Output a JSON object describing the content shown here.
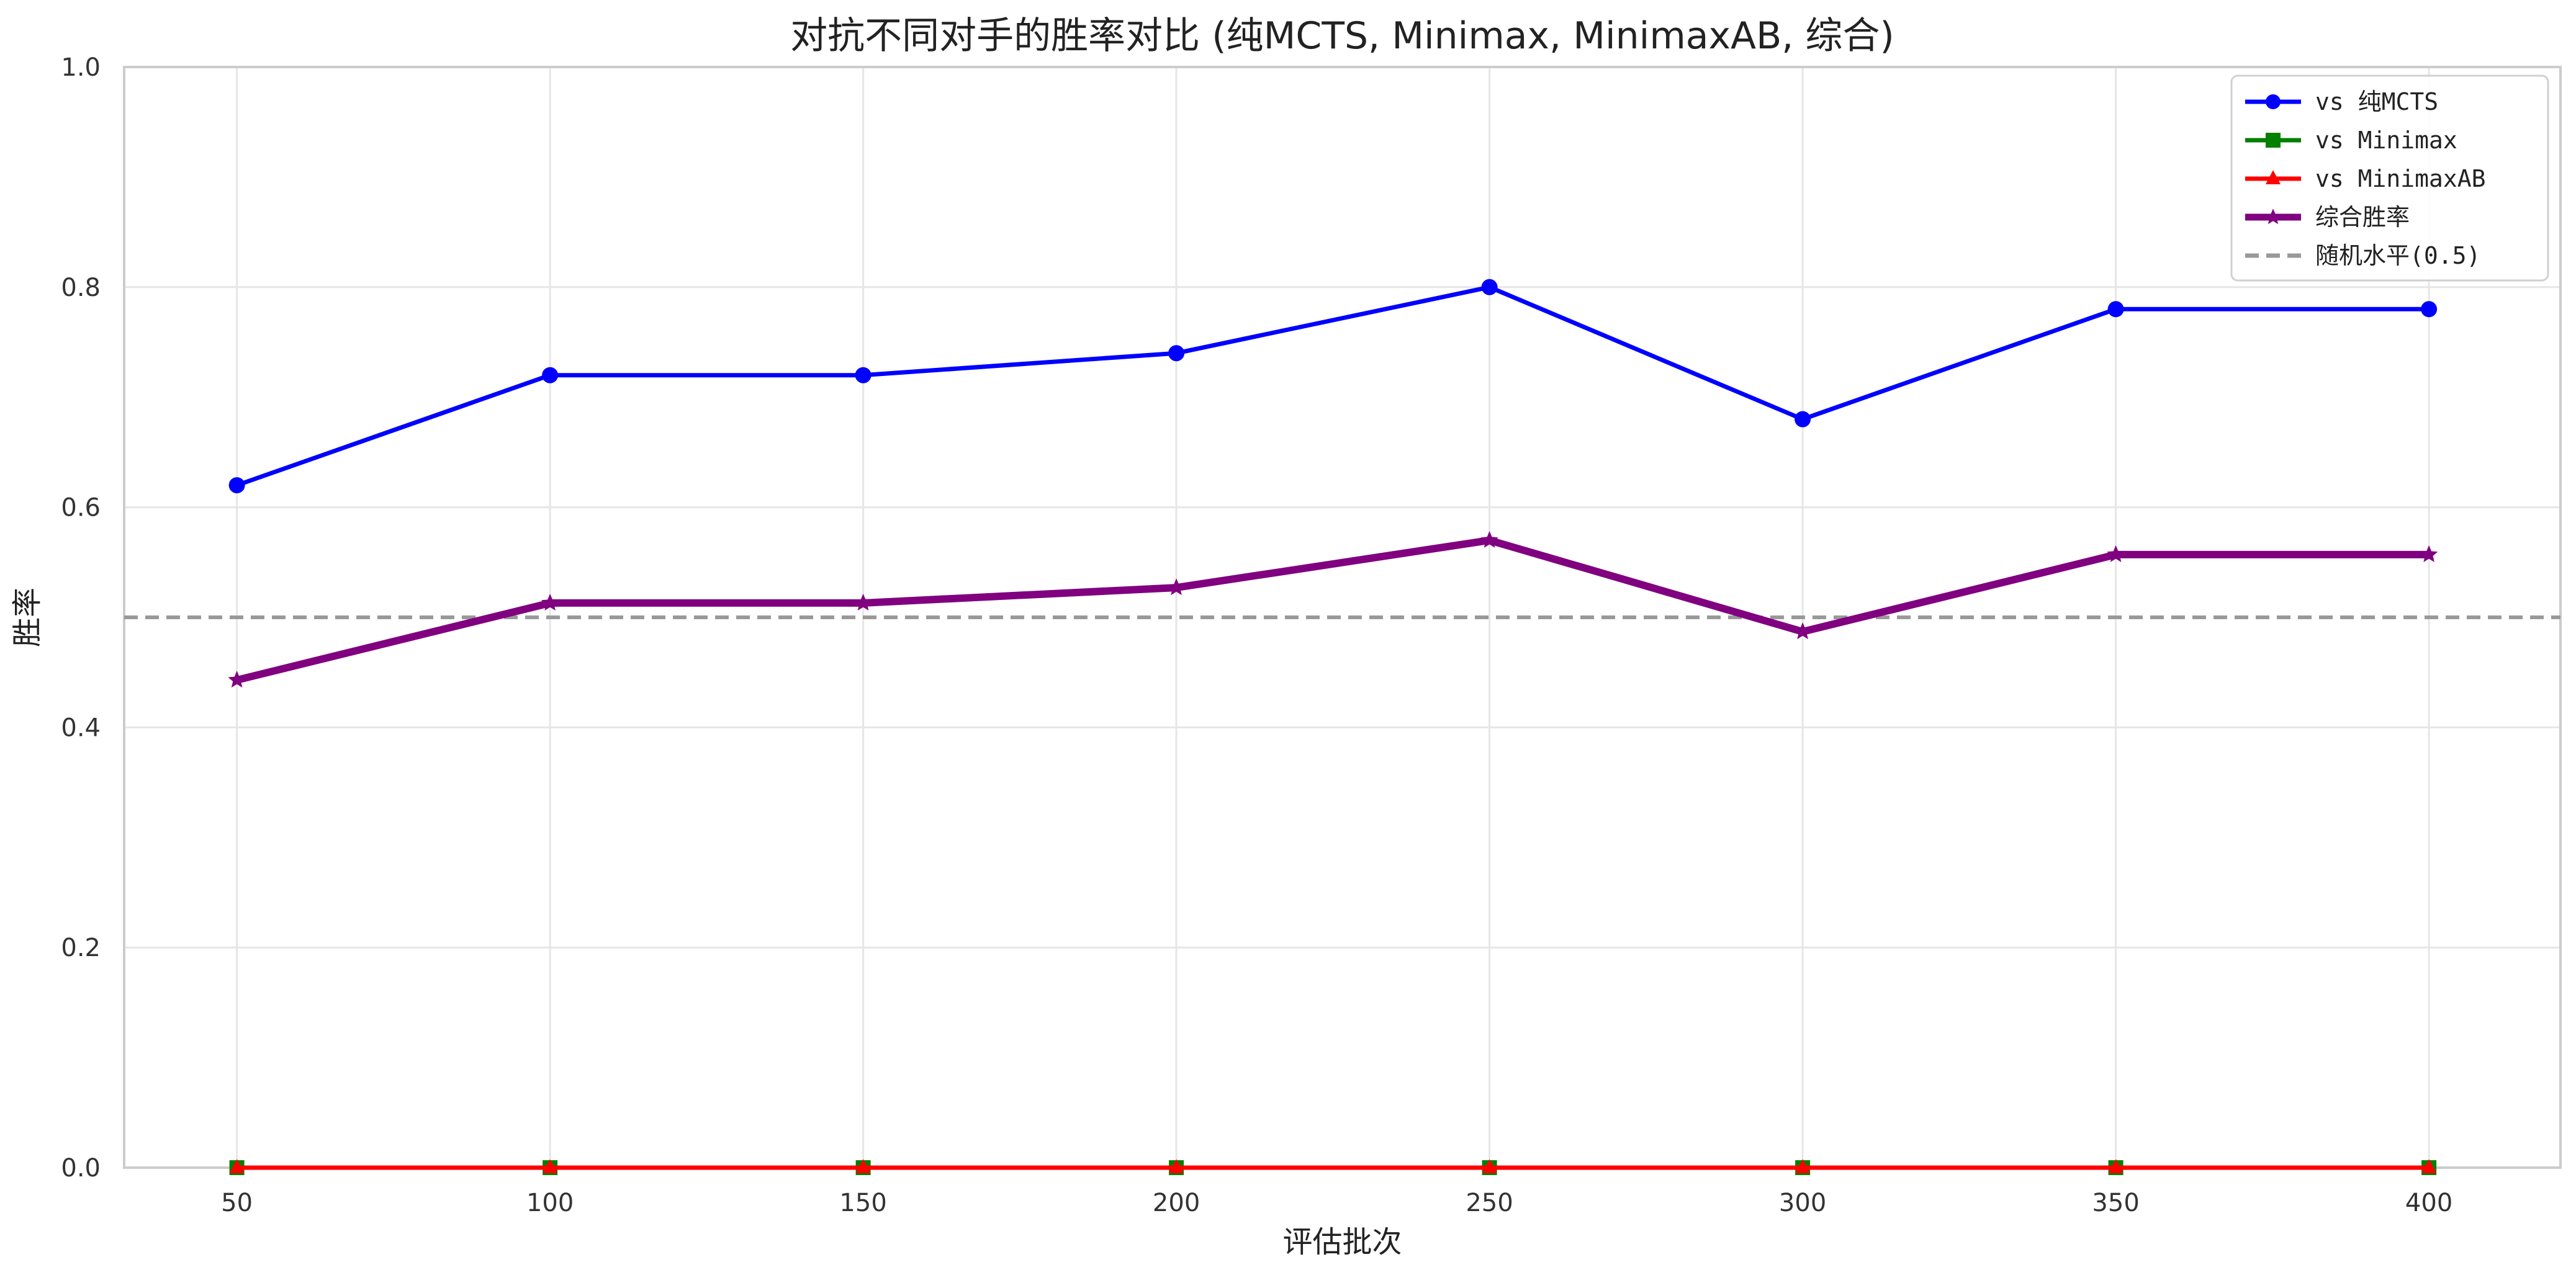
{
  "chart_data": {
    "type": "line",
    "title": "对抗不同对手的胜率对比 (纯MCTS, Minimax, MinimaxAB, 综合)",
    "xlabel": "评估批次",
    "ylabel": "胜率",
    "x": [
      50,
      100,
      150,
      200,
      250,
      300,
      350,
      400
    ],
    "xticks": [
      "50",
      "100",
      "150",
      "200",
      "250",
      "300",
      "350",
      "400"
    ],
    "xlim": [
      32,
      421
    ],
    "ylim": [
      0,
      1
    ],
    "yticks": [
      "0.0",
      "0.2",
      "0.4",
      "0.6",
      "0.8",
      "1.0"
    ],
    "grid": true,
    "legend_position": "top-right",
    "series": [
      {
        "name": "vs 纯MCTS",
        "color": "#0000ff",
        "marker": "circle",
        "values": [
          0.62,
          0.72,
          0.72,
          0.74,
          0.8,
          0.68,
          0.78,
          0.78
        ]
      },
      {
        "name": "vs Minimax",
        "color": "#008000",
        "marker": "square",
        "values": [
          0,
          0,
          0,
          0,
          0,
          0,
          0,
          0
        ]
      },
      {
        "name": "vs MinimaxAB",
        "color": "#ff0000",
        "marker": "triangle",
        "values": [
          0,
          0,
          0,
          0,
          0,
          0,
          0,
          0
        ]
      },
      {
        "name": "综合胜率",
        "color": "#800080",
        "marker": "star",
        "values": [
          0.443,
          0.513,
          0.513,
          0.527,
          0.57,
          0.487,
          0.557,
          0.557
        ]
      }
    ],
    "reference_line": {
      "name": "随机水平(0.5)",
      "value": 0.5,
      "color": "#999999",
      "style": "dashed"
    }
  }
}
